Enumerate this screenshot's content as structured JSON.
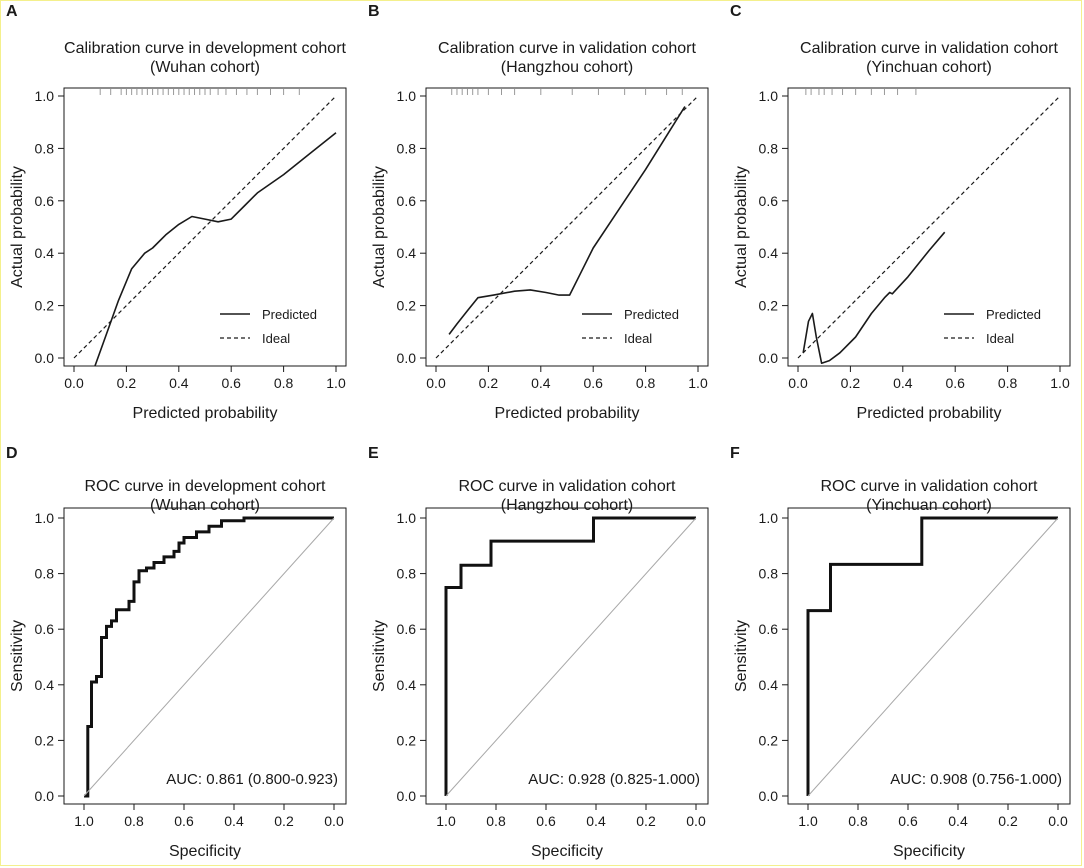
{
  "chart_data": [
    {
      "panel": "A",
      "type": "line",
      "title_line1": "Calibration curve in development cohort",
      "title_line2": "(Wuhan cohort)",
      "xlabel": "Predicted probability",
      "ylabel": "Actual probability",
      "xlim": [
        0,
        1.0
      ],
      "ylim": [
        0,
        1.0
      ],
      "xticks": [
        "0.0",
        "0.2",
        "0.4",
        "0.6",
        "0.8",
        "1.0"
      ],
      "yticks": [
        "0.0",
        "0.2",
        "0.4",
        "0.6",
        "0.8",
        "1.0"
      ],
      "legend": [
        "Predicted",
        "Ideal"
      ],
      "series": [
        {
          "name": "Predicted",
          "style": "solid",
          "x": [
            0.08,
            0.12,
            0.17,
            0.22,
            0.27,
            0.3,
            0.35,
            0.4,
            0.45,
            0.5,
            0.55,
            0.6,
            0.65,
            0.7,
            0.8,
            0.9,
            1.0
          ],
          "y": [
            -0.03,
            0.08,
            0.22,
            0.34,
            0.4,
            0.42,
            0.47,
            0.51,
            0.54,
            0.53,
            0.52,
            0.53,
            0.58,
            0.63,
            0.7,
            0.78,
            0.86
          ]
        },
        {
          "name": "Ideal",
          "style": "dashed",
          "x": [
            0,
            1.0
          ],
          "y": [
            0,
            1.0
          ]
        }
      ],
      "rug_x": [
        0.1,
        0.14,
        0.18,
        0.2,
        0.22,
        0.24,
        0.26,
        0.28,
        0.3,
        0.32,
        0.34,
        0.36,
        0.38,
        0.4,
        0.42,
        0.44,
        0.46,
        0.48,
        0.5,
        0.52,
        0.55,
        0.58,
        0.62,
        0.66,
        0.7,
        0.75,
        0.8,
        0.86
      ]
    },
    {
      "panel": "B",
      "type": "line",
      "title_line1": "Calibration curve in validation cohort",
      "title_line2": "(Hangzhou cohort)",
      "xlabel": "Predicted probability",
      "ylabel": "Actual probability",
      "xlim": [
        0,
        1.0
      ],
      "ylim": [
        0,
        1.0
      ],
      "xticks": [
        "0.0",
        "0.2",
        "0.4",
        "0.6",
        "0.8",
        "1.0"
      ],
      "yticks": [
        "0.0",
        "0.2",
        "0.4",
        "0.6",
        "0.8",
        "1.0"
      ],
      "legend": [
        "Predicted",
        "Ideal"
      ],
      "series": [
        {
          "name": "Predicted",
          "style": "solid",
          "x": [
            0.05,
            0.08,
            0.12,
            0.16,
            0.22,
            0.3,
            0.36,
            0.42,
            0.47,
            0.51,
            0.55,
            0.6,
            0.7,
            0.8,
            0.9,
            0.95
          ],
          "y": [
            0.09,
            0.13,
            0.18,
            0.23,
            0.24,
            0.255,
            0.26,
            0.25,
            0.24,
            0.24,
            0.32,
            0.42,
            0.57,
            0.72,
            0.88,
            0.96
          ]
        },
        {
          "name": "Ideal",
          "style": "dashed",
          "x": [
            0,
            1.0
          ],
          "y": [
            0,
            1.0
          ]
        }
      ],
      "rug_x": [
        0.06,
        0.08,
        0.1,
        0.12,
        0.14,
        0.16,
        0.2,
        0.25,
        0.3,
        0.4,
        0.52,
        0.62,
        0.72,
        0.8,
        0.88,
        0.94
      ]
    },
    {
      "panel": "C",
      "type": "line",
      "title_line1": "Calibration curve in validation cohort",
      "title_line2": "(Yinchuan  cohort)",
      "xlabel": "Predicted probability",
      "ylabel": "Actual probability",
      "xlim": [
        0,
        1.0
      ],
      "ylim": [
        0,
        1.0
      ],
      "xticks": [
        "0.0",
        "0.2",
        "0.4",
        "0.6",
        "0.8",
        "1.0"
      ],
      "yticks": [
        "0.0",
        "0.2",
        "0.4",
        "0.6",
        "0.8",
        "1.0"
      ],
      "legend": [
        "Predicted",
        "Ideal"
      ],
      "series": [
        {
          "name": "Predicted",
          "style": "solid",
          "x": [
            0.02,
            0.04,
            0.055,
            0.07,
            0.09,
            0.12,
            0.16,
            0.22,
            0.28,
            0.33,
            0.35,
            0.36,
            0.42,
            0.5,
            0.56
          ],
          "y": [
            0.02,
            0.14,
            0.17,
            0.08,
            -0.02,
            -0.01,
            0.02,
            0.08,
            0.17,
            0.23,
            0.25,
            0.245,
            0.31,
            0.41,
            0.48
          ]
        },
        {
          "name": "Ideal",
          "style": "dashed",
          "x": [
            0,
            1.0
          ],
          "y": [
            0,
            1.0
          ]
        }
      ],
      "rug_x": [
        0.03,
        0.05,
        0.08,
        0.1,
        0.13,
        0.17,
        0.22,
        0.28,
        0.33,
        0.38,
        0.45
      ]
    },
    {
      "panel": "D",
      "type": "line",
      "title_line1": "ROC curve in development cohort",
      "title_line2": "(Wuhan cohort)",
      "xlabel": "Specificity",
      "ylabel": "Sensitivity",
      "xlim": [
        1.0,
        0.0
      ],
      "ylim": [
        0,
        1.0
      ],
      "xticks": [
        "1.0",
        "0.8",
        "0.6",
        "0.4",
        "0.2",
        "0.0"
      ],
      "yticks": [
        "0.0",
        "0.2",
        "0.4",
        "0.6",
        "0.8",
        "1.0"
      ],
      "auc_label": "AUC: 0.861 (0.800-0.923)",
      "series": [
        {
          "name": "ROC",
          "style": "step",
          "x": [
            1.0,
            0.985,
            0.985,
            0.97,
            0.97,
            0.95,
            0.95,
            0.93,
            0.93,
            0.91,
            0.91,
            0.89,
            0.89,
            0.87,
            0.87,
            0.82,
            0.82,
            0.8,
            0.8,
            0.78,
            0.78,
            0.75,
            0.75,
            0.72,
            0.72,
            0.68,
            0.68,
            0.64,
            0.64,
            0.62,
            0.62,
            0.6,
            0.6,
            0.55,
            0.55,
            0.5,
            0.5,
            0.45,
            0.45,
            0.36,
            0.36,
            0.0
          ],
          "y": [
            0.0,
            0.0,
            0.25,
            0.25,
            0.41,
            0.41,
            0.43,
            0.43,
            0.57,
            0.57,
            0.61,
            0.61,
            0.63,
            0.63,
            0.67,
            0.67,
            0.7,
            0.7,
            0.77,
            0.77,
            0.81,
            0.81,
            0.82,
            0.82,
            0.84,
            0.84,
            0.86,
            0.86,
            0.88,
            0.88,
            0.91,
            0.91,
            0.93,
            0.93,
            0.95,
            0.95,
            0.97,
            0.97,
            0.99,
            0.99,
            1.0,
            1.0
          ]
        },
        {
          "name": "Reference",
          "style": "diagonal",
          "x": [
            1.0,
            0.0
          ],
          "y": [
            0.0,
            1.0
          ]
        }
      ]
    },
    {
      "panel": "E",
      "type": "line",
      "title_line1": "ROC curve in validation cohort",
      "title_line2": "(Hangzhou cohort)",
      "xlabel": "Specificity",
      "ylabel": "Sensitivity",
      "xlim": [
        1.0,
        0.0
      ],
      "ylim": [
        0,
        1.0
      ],
      "xticks": [
        "1.0",
        "0.8",
        "0.6",
        "0.4",
        "0.2",
        "0.0"
      ],
      "yticks": [
        "0.0",
        "0.2",
        "0.4",
        "0.6",
        "0.8",
        "1.0"
      ],
      "auc_label": "AUC: 0.928 (0.825-1.000)",
      "series": [
        {
          "name": "ROC",
          "style": "step",
          "x": [
            1.0,
            1.0,
            0.94,
            0.94,
            0.88,
            0.88,
            0.82,
            0.82,
            0.41,
            0.41,
            0.0
          ],
          "y": [
            0.0,
            0.75,
            0.75,
            0.83,
            0.83,
            0.83,
            0.83,
            0.917,
            0.917,
            1.0,
            1.0
          ]
        },
        {
          "name": "Reference",
          "style": "diagonal",
          "x": [
            1.0,
            0.0
          ],
          "y": [
            0.0,
            1.0
          ]
        }
      ]
    },
    {
      "panel": "F",
      "type": "line",
      "title_line1": "ROC curve in validation cohort",
      "title_line2": "(Yinchuan cohort)",
      "xlabel": "Specificity",
      "ylabel": "Sensitivity",
      "xlim": [
        1.0,
        0.0
      ],
      "ylim": [
        0,
        1.0
      ],
      "xticks": [
        "1.0",
        "0.8",
        "0.6",
        "0.4",
        "0.2",
        "0.0"
      ],
      "yticks": [
        "0.0",
        "0.2",
        "0.4",
        "0.6",
        "0.8",
        "1.0"
      ],
      "auc_label": "AUC: 0.908 (0.756-1.000)",
      "series": [
        {
          "name": "ROC",
          "style": "step",
          "x": [
            1.0,
            1.0,
            0.91,
            0.91,
            0.545,
            0.545,
            0.0
          ],
          "y": [
            0.0,
            0.667,
            0.667,
            0.833,
            0.833,
            1.0,
            1.0
          ]
        },
        {
          "name": "Reference",
          "style": "diagonal",
          "x": [
            1.0,
            0.0
          ],
          "y": [
            0.0,
            1.0
          ]
        }
      ]
    }
  ]
}
